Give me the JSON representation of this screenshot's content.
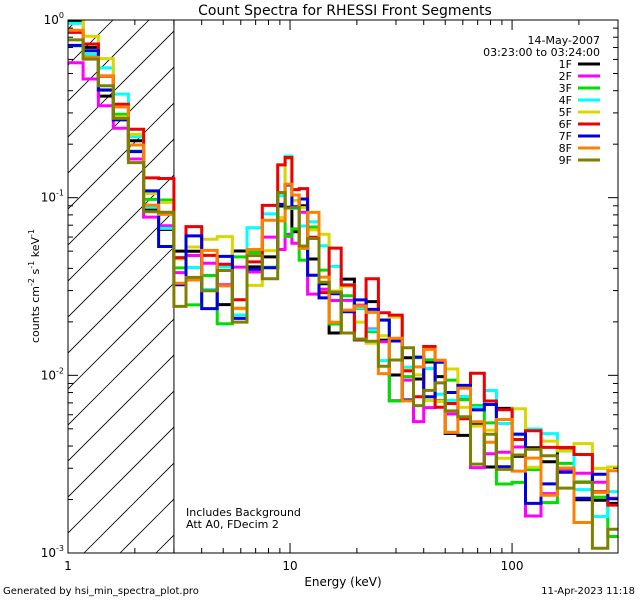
{
  "chart_data": {
    "type": "line",
    "title": "Count Spectra for RHESSI Front Segments",
    "xlabel": "Energy (keV)",
    "ylabel_parts": {
      "base": "counts cm",
      "exp1": "-2",
      "mid": " s",
      "exp2": "-1",
      "tail": " keV",
      "exp3": "-1"
    },
    "xscale": "log",
    "yscale": "log",
    "xlim": [
      1,
      300
    ],
    "ylim": [
      0.001,
      1
    ],
    "x_ticks": [
      {
        "value": 1,
        "label": "1"
      },
      {
        "value": 10,
        "label": "10"
      },
      {
        "value": 100,
        "label": "100"
      }
    ],
    "y_ticks": [
      {
        "value": 0.001,
        "base": "10",
        "exp": "-3"
      },
      {
        "value": 0.01,
        "base": "10",
        "exp": "-2"
      },
      {
        "value": 0.1,
        "base": "10",
        "exp": "-1"
      },
      {
        "value": 1,
        "base": "10",
        "exp": "0"
      }
    ],
    "shaded_region": {
      "xmin": 1,
      "xmax": 3,
      "pattern": "diagonal-hatch"
    },
    "date": "14-May-2007",
    "time_range": "03:23:00 to 03:24:00",
    "annotations": [
      "Includes Background",
      "Att A0, FDecim 2"
    ],
    "legend_placement": "top-right",
    "series": [
      {
        "name": "1F",
        "color": "#000000"
      },
      {
        "name": "2F",
        "color": "#ff00ff"
      },
      {
        "name": "3F",
        "color": "#00dd00"
      },
      {
        "name": "4F",
        "color": "#00ffff"
      },
      {
        "name": "5F",
        "color": "#d8d800"
      },
      {
        "name": "6F",
        "color": "#ee0000"
      },
      {
        "name": "7F",
        "color": "#0000dd"
      },
      {
        "name": "8F",
        "color": "#ff8000"
      },
      {
        "name": "9F",
        "color": "#808000"
      }
    ],
    "profile_note": "Shared spectral shape (counts/cm2/s/keV vs energy) sampled at bin edges; per-series scale factors applied.",
    "energy_bins": [
      1.0,
      1.17,
      1.37,
      1.6,
      1.87,
      2.19,
      2.56,
      3.0,
      3.4,
      4.0,
      4.7,
      5.5,
      6.4,
      7.5,
      8.8,
      9.5,
      10.2,
      11.0,
      12.0,
      13.5,
      15.0,
      17.0,
      19.5,
      22.0,
      25.0,
      28.0,
      32.0,
      36.0,
      40.0,
      45.0,
      50.0,
      57.0,
      65.0,
      75.0,
      85.0,
      100.0,
      115.0,
      135.0,
      160.0,
      190.0,
      230.0,
      270.0,
      300.0
    ],
    "profile_values": [
      0.85,
      0.6,
      0.45,
      0.3,
      0.18,
      0.1,
      0.075,
      0.05,
      0.045,
      0.04,
      0.038,
      0.036,
      0.045,
      0.065,
      0.09,
      0.11,
      0.1,
      0.075,
      0.055,
      0.04,
      0.03,
      0.026,
      0.022,
      0.02,
      0.017,
      0.014,
      0.012,
      0.011,
      0.01,
      0.009,
      0.0075,
      0.0065,
      0.0058,
      0.0052,
      0.0045,
      0.004,
      0.0035,
      0.003,
      0.0028,
      0.0025,
      0.0022,
      0.002,
      0.0018
    ],
    "series_scales": [
      1.0,
      0.8,
      0.9,
      1.1,
      1.15,
      1.25,
      0.95,
      1.05,
      0.85
    ]
  },
  "footer": {
    "generated": "Generated by hsi_min_spectra_plot.pro",
    "timestamp": "11-Apr-2023 11:18"
  }
}
